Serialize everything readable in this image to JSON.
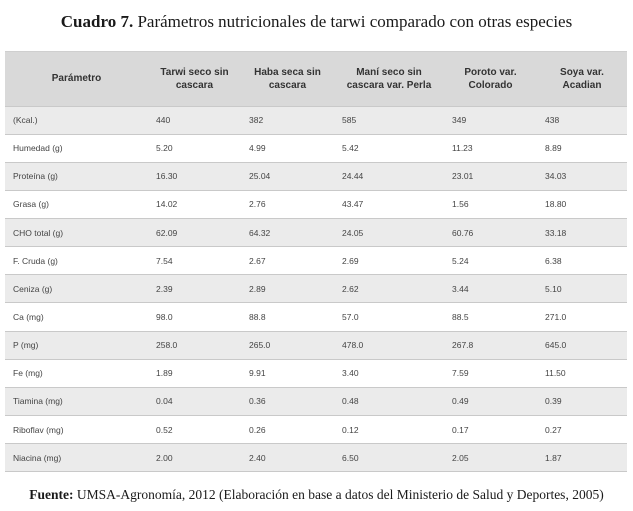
{
  "caption": {
    "label": "Cuadro 7.",
    "text": "Parámetros nutricionales de tarwi comparado con otras especies"
  },
  "table": {
    "headers": [
      "Parámetro",
      "Tarwi seco sin cascara",
      "Haba seca sin cascara",
      "Maní seco sin cascara var. Perla",
      "Poroto var. Colorado",
      "Soya var. Acadian"
    ],
    "rows": [
      [
        "(Kcal.)",
        "440",
        "382",
        "585",
        "349",
        "438"
      ],
      [
        "Humedad (g)",
        "5.20",
        "4.99",
        "5.42",
        "11.23",
        "8.89"
      ],
      [
        "Proteína (g)",
        "16.30",
        "25.04",
        "24.44",
        "23.01",
        "34.03"
      ],
      [
        "Grasa (g)",
        "14.02",
        "2.76",
        "43.47",
        "1.56",
        "18.80"
      ],
      [
        "CHO total (g)",
        "62.09",
        "64.32",
        "24.05",
        "60.76",
        "33.18"
      ],
      [
        "F. Cruda (g)",
        "7.54",
        "2.67",
        "2.69",
        "5.24",
        "6.38"
      ],
      [
        "Ceniza (g)",
        "2.39",
        "2.89",
        "2.62",
        "3.44",
        "5.10"
      ],
      [
        "Ca (mg)",
        "98.0",
        "88.8",
        "57.0",
        "88.5",
        "271.0"
      ],
      [
        "P (mg)",
        "258.0",
        "265.0",
        "478.0",
        "267.8",
        "645.0"
      ],
      [
        "Fe (mg)",
        "1.89",
        "9.91",
        "3.40",
        "7.59",
        "11.50"
      ],
      [
        "Tiamina (mg)",
        "0.04",
        "0.36",
        "0.48",
        "0.49",
        "0.39"
      ],
      [
        "Riboflav (mg)",
        "0.52",
        "0.26",
        "0.12",
        "0.17",
        "0.27"
      ],
      [
        "Niacina (mg)",
        "2.00",
        "2.40",
        "6.50",
        "2.05",
        "1.87"
      ]
    ]
  },
  "source": {
    "label": "Fuente:",
    "text": "UMSA-Agronomía, 2012 (Elaboración en base a datos del Ministerio de Salud y Deportes, 2005)"
  }
}
